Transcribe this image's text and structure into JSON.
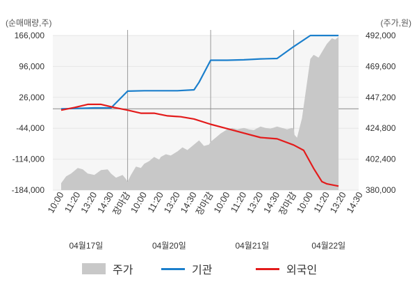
{
  "chart_data": {
    "type": "line",
    "left_axis_title": "(순매매량,주)",
    "right_axis_title": "(주가,원)",
    "left_ticks": [
      "166,000",
      "96,000",
      "26,000",
      "-44,000",
      "-114,000",
      "-184,000"
    ],
    "right_ticks": [
      "492,000",
      "469,600",
      "447,200",
      "424,800",
      "402,400",
      "380,000"
    ],
    "left_ylim": [
      -184000,
      166000
    ],
    "right_ylim": [
      380000,
      492000
    ],
    "x_ticks": [
      "10:00",
      "11:20",
      "13:20",
      "14:30",
      "장마감",
      "10:00",
      "11:20",
      "13:20",
      "14:30",
      "장마감",
      "10:00",
      "11:20",
      "13:20",
      "14:30",
      "장마감",
      "10:00",
      "11:20",
      "13:20",
      "14:30"
    ],
    "x_tick_colors": [
      "#333333",
      "#333333",
      "#333333",
      "#333333",
      "#e31b1b",
      "#333333",
      "#333333",
      "#333333",
      "#333333",
      "#e31b1b",
      "#333333",
      "#333333",
      "#333333",
      "#333333",
      "#e31b1b",
      "#333333",
      "#333333",
      "#333333",
      "#333333"
    ],
    "dates": [
      "04월17일",
      "04월20일",
      "04월21일",
      "04월22일"
    ],
    "reference_line": 0,
    "grid": true,
    "legend": {
      "placement": "bottom",
      "items": [
        {
          "label": "주가",
          "type": "area",
          "color": "#c8c8c8"
        },
        {
          "label": "기관",
          "type": "line",
          "color": "#1b7fcc"
        },
        {
          "label": "외국인",
          "type": "line",
          "color": "#e31b1b"
        }
      ]
    },
    "series": [
      {
        "name": "주가",
        "axis": "right",
        "type": "area",
        "color": "#c8c8c8",
        "x": [
          0,
          0.3,
          0.6,
          1,
          1.3,
          1.6,
          2,
          2.4,
          2.8,
          3,
          3.3,
          3.5,
          3.7,
          3.9,
          4,
          4.2,
          4.5,
          4.8,
          5,
          5.3,
          5.6,
          5.9,
          6,
          6.3,
          6.6,
          7,
          7.3,
          7.6,
          8,
          8.3,
          8.6,
          8.9,
          9,
          9.3,
          9.6,
          10,
          10.3,
          10.6,
          11,
          11.3,
          11.6,
          12,
          12.3,
          12.6,
          13,
          13.3,
          13.6,
          13.9,
          14,
          14.05,
          14.2,
          14.5,
          15,
          15.2,
          15.5,
          15.8,
          16,
          16.3,
          16.5,
          16.7
        ],
        "y": [
          385000,
          390000,
          392000,
          396000,
          395000,
          392000,
          391000,
          394500,
          395000,
          392000,
          389000,
          390000,
          391000,
          388000,
          386000,
          391000,
          397000,
          396000,
          399000,
          401000,
          404000,
          402000,
          404000,
          406000,
          405000,
          408000,
          411000,
          409000,
          413000,
          416000,
          412000,
          413000,
          415000,
          418000,
          421000,
          424000,
          425000,
          424000,
          425000,
          424000,
          423500,
          426000,
          425000,
          424500,
          426000,
          425000,
          424000,
          425000,
          424500,
          420000,
          418000,
          432000,
          475000,
          478000,
          476000,
          482000,
          486000,
          490000,
          489000,
          491000
        ]
      },
      {
        "name": "기관",
        "axis": "left",
        "type": "line",
        "color": "#1b7fcc",
        "x": [
          0,
          1,
          2,
          3,
          4,
          5,
          6,
          7,
          8,
          8.3,
          9,
          10,
          11,
          12,
          13,
          14,
          15,
          16,
          16.7
        ],
        "y": [
          0,
          1000,
          2000,
          2000,
          40000,
          41000,
          41000,
          41000,
          43000,
          60000,
          110000,
          110000,
          111000,
          113000,
          114000,
          141000,
          166000,
          166000,
          166000
        ]
      },
      {
        "name": "외국인",
        "axis": "left",
        "type": "line",
        "color": "#e31b1b",
        "x": [
          0,
          0.8,
          1.6,
          2.4,
          3.2,
          4,
          4.8,
          5.6,
          6.4,
          7.2,
          8,
          9,
          10,
          11,
          12,
          13,
          14,
          14.6,
          15.2,
          15.7,
          16,
          16.7
        ],
        "y": [
          -3000,
          3000,
          10000,
          10000,
          3000,
          -3000,
          -10000,
          -10000,
          -16000,
          -18000,
          -23000,
          -35000,
          -45000,
          -55000,
          -65000,
          -68000,
          -82000,
          -94000,
          -135000,
          -165000,
          -170000,
          -175000
        ]
      }
    ]
  }
}
